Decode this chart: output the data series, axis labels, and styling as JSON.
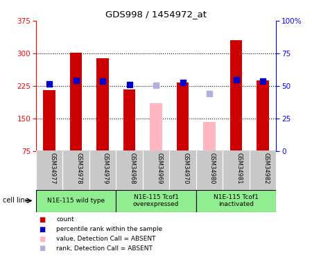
{
  "title": "GDS998 / 1454972_at",
  "samples": [
    "GSM34977",
    "GSM34978",
    "GSM34979",
    "GSM34968",
    "GSM34969",
    "GSM34970",
    "GSM34980",
    "GSM34981",
    "GSM34982"
  ],
  "count_values": [
    215,
    302,
    288,
    216,
    null,
    232,
    null,
    330,
    238
  ],
  "count_absent": [
    null,
    null,
    null,
    null,
    184,
    null,
    141,
    null,
    null
  ],
  "rank_values": [
    229,
    238,
    236,
    228,
    null,
    232,
    null,
    239,
    236
  ],
  "rank_absent": [
    null,
    null,
    null,
    null,
    227,
    null,
    207,
    null,
    null
  ],
  "ylim_left": [
    75,
    375
  ],
  "ylim_right": [
    0,
    100
  ],
  "yticks_left": [
    75,
    150,
    225,
    300,
    375
  ],
  "yticks_right": [
    0,
    25,
    50,
    75,
    100
  ],
  "ytick_labels_right": [
    "0",
    "25",
    "50",
    "75",
    "100%"
  ],
  "bar_bottom": 75,
  "count_color": "#cc0000",
  "count_absent_color": "#ffb6c1",
  "rank_color": "#0000cc",
  "rank_absent_color": "#b0b0e0",
  "bar_width": 0.45,
  "rank_marker_size": 28,
  "bg_color": "#ffffff",
  "plot_bg": "#ffffff",
  "tick_area_bg": "#c8c8c8",
  "group_bg": "#90ee90",
  "group_configs": [
    {
      "indices": [
        0,
        1,
        2
      ],
      "label": "N1E-115 wild type"
    },
    {
      "indices": [
        3,
        4,
        5
      ],
      "label": "N1E-115 Tcof1\noverexpressed"
    },
    {
      "indices": [
        6,
        7,
        8
      ],
      "label": "N1E-115 Tcof1\ninactivated"
    }
  ],
  "cell_line_text": "cell line",
  "legend_items": [
    {
      "label": "count",
      "color": "#cc0000"
    },
    {
      "label": "percentile rank within the sample",
      "color": "#0000cc"
    },
    {
      "label": "value, Detection Call = ABSENT",
      "color": "#ffb6c1"
    },
    {
      "label": "rank, Detection Call = ABSENT",
      "color": "#b0b0e0"
    }
  ],
  "dotted_lines": [
    150,
    225,
    300
  ]
}
